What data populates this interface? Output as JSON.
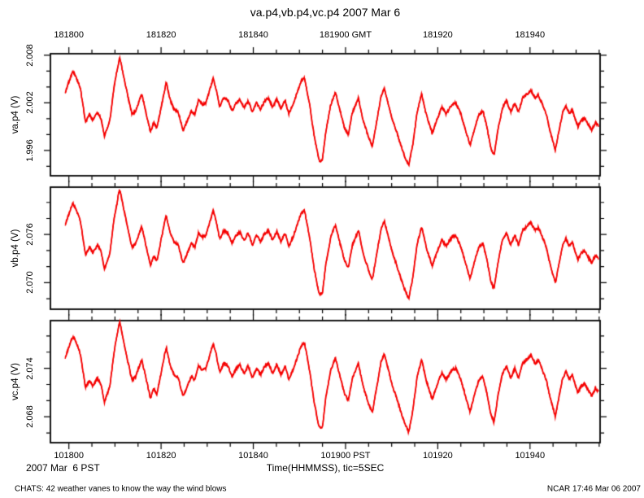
{
  "title": "va.p4,vb.p4,vc.p4 2007 Mar 6",
  "colors": {
    "trace": "#f50000",
    "frame": "#000000",
    "background": "#ffffff"
  },
  "bottom_row": {
    "date_label": "2007 Mar  6 PST",
    "x_axis_title": "Time(HHMMSS), tic=5SEC"
  },
  "footer": {
    "left": "CHATS: 42 weather vanes to know the way the wind blows",
    "right": "NCAR 17:46 Mar 06 2007"
  },
  "style": {
    "noise_amplitude_v": 0.00018,
    "trace_width": 1.5
  },
  "chart_data": {
    "type": "line",
    "title": "va.p4,vb.p4,vc.p4 2007 Mar 6",
    "xlabel": "Time(HHMMSS), tic=5SEC",
    "x_axis": {
      "xlim_seconds": [
        -4,
        115.2
      ],
      "tic_seconds": 5,
      "major_tic_seconds": 20,
      "top_tick_labels": [
        {
          "t": 0,
          "text": "181800"
        },
        {
          "t": 20,
          "text": "181820"
        },
        {
          "t": 40,
          "text": "181840"
        },
        {
          "t": 60,
          "text": "181900 GMT"
        },
        {
          "t": 80,
          "text": "181920"
        },
        {
          "t": 100,
          "text": "181940"
        }
      ],
      "bottom_tick_labels": [
        {
          "t": 0,
          "text": "101800"
        },
        {
          "t": 20,
          "text": "101820"
        },
        {
          "t": 40,
          "text": "101840"
        },
        {
          "t": 60,
          "text": "101900 PST"
        },
        {
          "t": 80,
          "text": "101920"
        },
        {
          "t": 100,
          "text": "101940"
        }
      ]
    },
    "t_seconds_after_181800_gmt": [
      -0.8,
      -0.1,
      0.9,
      1.8,
      2.5,
      3.6,
      4.5,
      5.2,
      6.2,
      7.0,
      7.7,
      8.2,
      8.9,
      9.8,
      11.0,
      11.9,
      12.8,
      13.7,
      14.5,
      15.8,
      16.7,
      17.7,
      18.4,
      19.1,
      20.2,
      21.1,
      22.0,
      22.8,
      23.7,
      24.8,
      25.7,
      26.6,
      27.3,
      28.1,
      29.0,
      29.7,
      30.4,
      31.3,
      32.0,
      32.7,
      33.6,
      34.5,
      35.4,
      36.3,
      37.1,
      38.0,
      38.9,
      39.8,
      40.7,
      41.6,
      42.4,
      43.3,
      44.2,
      45.1,
      46.0,
      46.9,
      47.7,
      48.6,
      49.5,
      50.4,
      51.1,
      52.2,
      53.2,
      54.3,
      55.0,
      55.7,
      56.8,
      57.8,
      58.9,
      59.8,
      60.6,
      61.5,
      62.8,
      63.8,
      64.9,
      65.8,
      66.8,
      67.7,
      68.4,
      69.3,
      70.2,
      71.1,
      71.9,
      72.8,
      73.7,
      74.6,
      75.5,
      76.5,
      77.6,
      78.8,
      79.9,
      80.9,
      81.8,
      83.1,
      83.9,
      85.0,
      85.9,
      87.0,
      88.0,
      88.9,
      89.8,
      90.7,
      91.5,
      92.2,
      93.1,
      94.0,
      94.9,
      95.8,
      96.7,
      97.5,
      98.4,
      99.3,
      100.2,
      101.1,
      101.8,
      102.7,
      103.5,
      104.4,
      105.5,
      106.4,
      107.1,
      107.8,
      108.5,
      109.2,
      109.9,
      110.4,
      111.1,
      111.9,
      112.6,
      113.4,
      114.2,
      114.9
    ],
    "panels": [
      {
        "name": "va.p4",
        "ylabel": "va.p4 (V)",
        "ylim": [
          1.9928,
          2.0082
        ],
        "ytick_step": 0.002,
        "yticks_labeled": [
          1.996,
          2.002,
          2.008
        ],
        "values_v": [
          2.0033,
          2.0045,
          2.006,
          2.0049,
          2.0038,
          1.9996,
          2.0005,
          1.9998,
          2.0008,
          2.0,
          1.9978,
          1.9986,
          1.9998,
          2.004,
          2.0078,
          2.0053,
          2.0028,
          2.0005,
          2.001,
          2.0031,
          2.0008,
          1.9983,
          1.9995,
          1.9988,
          2.002,
          2.0046,
          2.0023,
          2.0012,
          2.0008,
          1.9985,
          1.9998,
          2.001,
          2.0005,
          2.0023,
          2.0018,
          2.002,
          2.0033,
          2.0051,
          2.0036,
          2.0015,
          2.0026,
          2.0023,
          2.001,
          2.002,
          2.0024,
          2.0014,
          2.0023,
          2.0008,
          2.002,
          2.0012,
          2.0022,
          2.0026,
          2.0014,
          2.0025,
          2.0012,
          2.0023,
          2.0006,
          2.0018,
          2.0033,
          2.0048,
          2.0051,
          2.0018,
          1.9978,
          1.9946,
          1.9948,
          1.9983,
          2.0018,
          2.0033,
          2.0008,
          1.9988,
          1.998,
          2.0008,
          2.0026,
          1.9998,
          1.9978,
          1.9965,
          1.9998,
          2.0028,
          2.0038,
          2.0018,
          1.9998,
          1.9983,
          1.9968,
          1.9953,
          1.9941,
          1.9968,
          2.0008,
          2.0031,
          2.0003,
          1.9982,
          2.0,
          2.0015,
          2.0006,
          2.0018,
          2.002,
          2.0006,
          1.9988,
          1.9966,
          1.9988,
          2.0005,
          2.001,
          1.9988,
          1.9963,
          1.9953,
          1.9988,
          2.0013,
          2.0023,
          2.0008,
          2.002,
          2.0008,
          2.0026,
          2.0031,
          2.0036,
          2.0026,
          2.003,
          2.0018,
          2.0006,
          1.9983,
          1.996,
          1.9988,
          2.0008,
          2.0016,
          2.0007,
          2.0011,
          1.9998,
          1.999,
          1.9998,
          2.0001,
          1.9993,
          1.9986,
          1.9995,
          1.9991
        ]
      },
      {
        "name": "vb.p4",
        "ylabel": "vb.p4 (V)",
        "ylim": [
          2.0667,
          2.0819
        ],
        "ytick_step": 0.002,
        "yticks_labeled": [
          2.07,
          2.076
        ],
        "offset_from_va_v": 0.0739
      },
      {
        "name": "vc.p4",
        "ylabel": "vc.p4 (V)",
        "ylim": [
          2.0648,
          2.0799
        ],
        "ytick_step": 0.002,
        "yticks_labeled": [
          2.068,
          2.074
        ],
        "offset_from_va_v": 0.072
      }
    ]
  }
}
